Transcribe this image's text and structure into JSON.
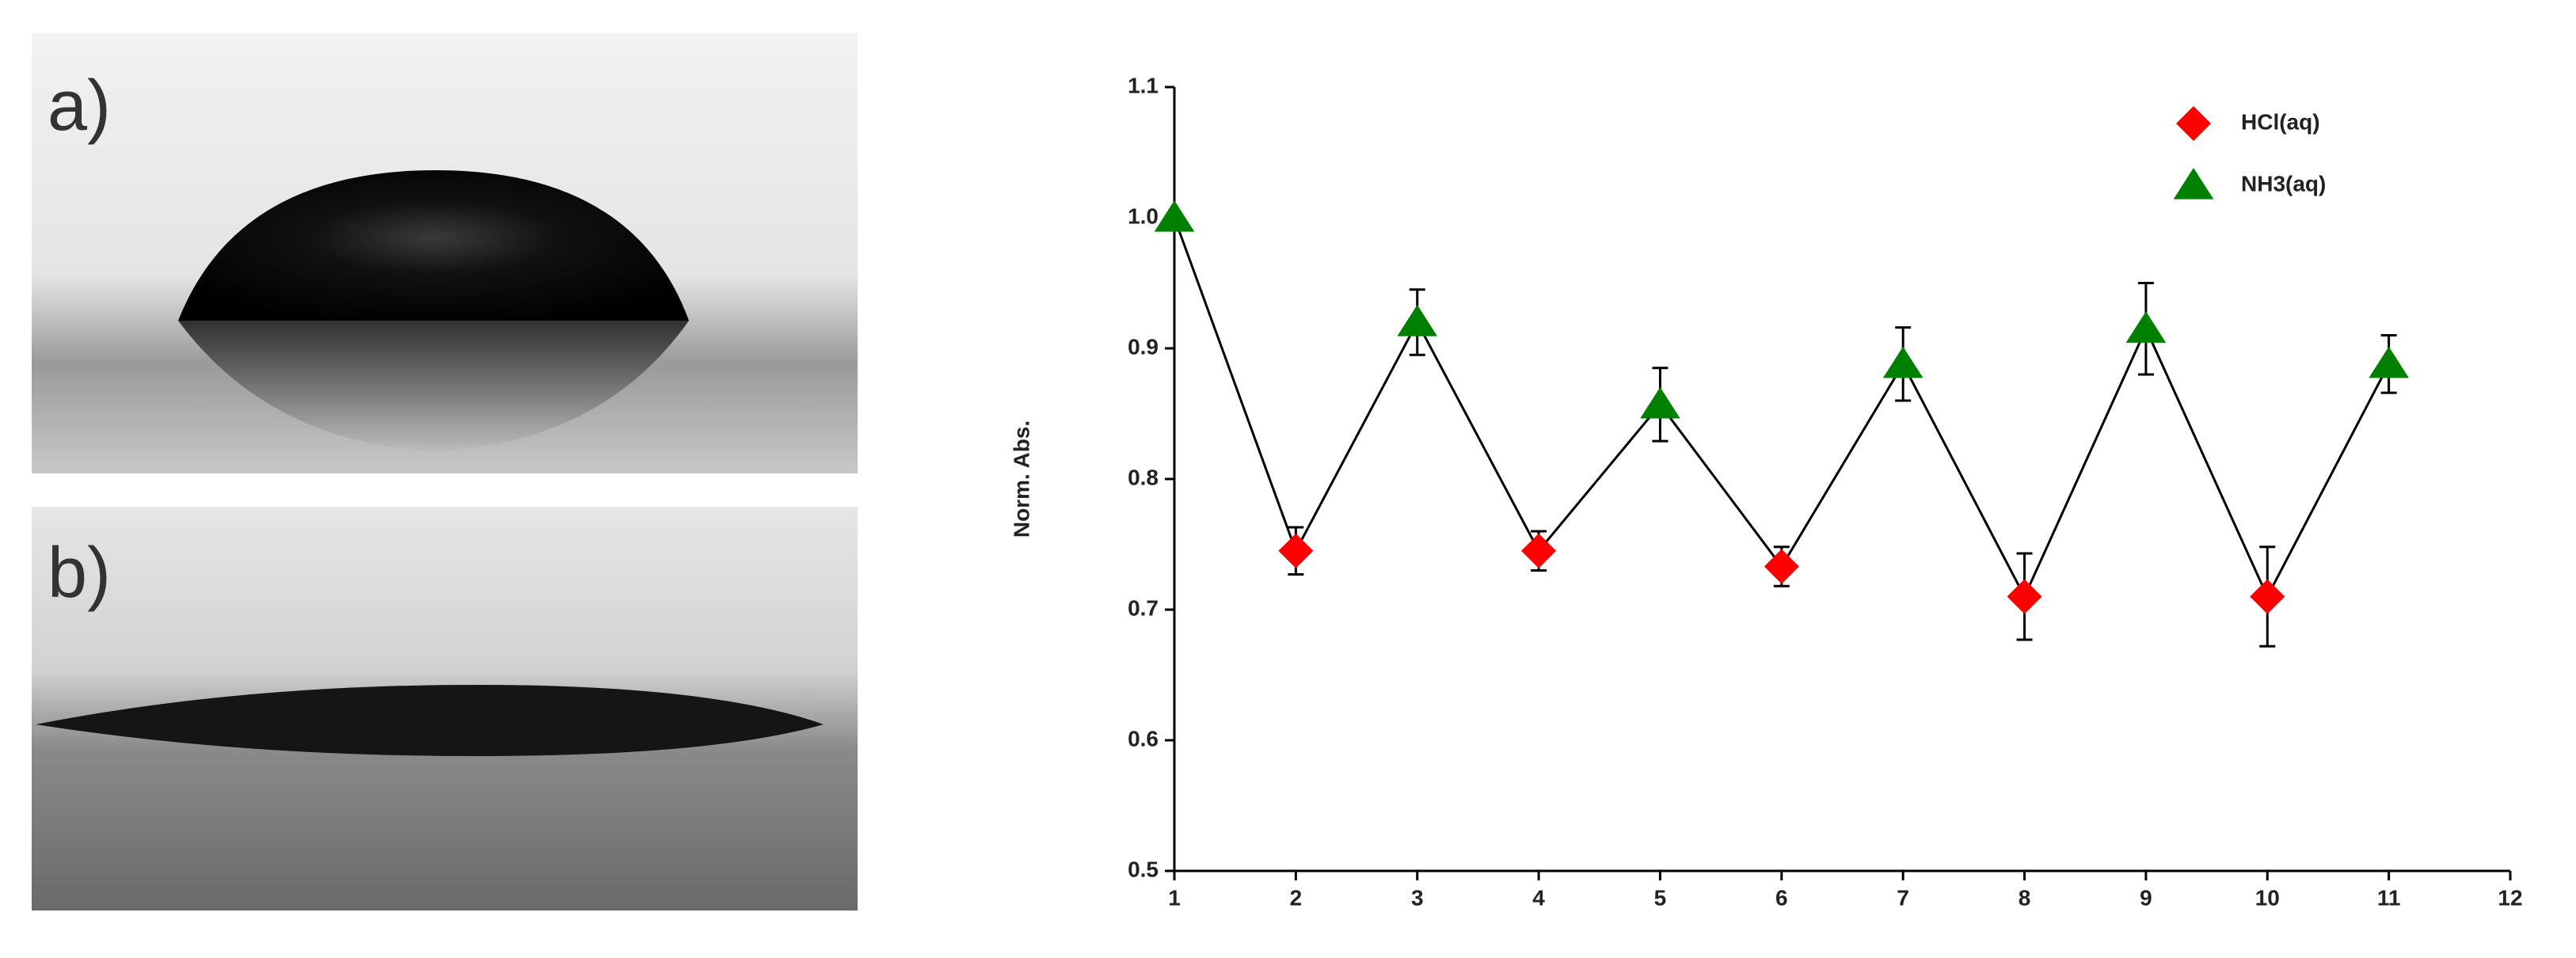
{
  "panels": [
    "a)",
    "b)"
  ],
  "chart_data": {
    "type": "scatter",
    "y_label": "Norm. Abs.",
    "xlim": [
      1,
      12
    ],
    "xticks": [
      1,
      2,
      3,
      4,
      5,
      6,
      7,
      8,
      9,
      10,
      11,
      12
    ],
    "ylim": [
      0.5,
      1.1
    ],
    "yticks": [
      0.5,
      0.6,
      0.7,
      0.8,
      0.9,
      {
        "value": 1,
        "label": "1.0"
      },
      1.1
    ],
    "connect": true,
    "legend": "top-right",
    "series": [
      {
        "name": "HCl(aq)",
        "color": "#ff0000",
        "marker": "diamond",
        "x": [
          2,
          4,
          6,
          8,
          10
        ],
        "values": [
          0.745,
          0.745,
          0.733,
          0.71,
          0.71
        ],
        "errors": [
          0.018,
          0.015,
          0.015,
          0.033,
          0.038
        ]
      },
      {
        "name": "NH3(aq)",
        "color": "#008000",
        "marker": "triangle",
        "x": [
          1,
          3,
          5,
          7,
          9,
          11
        ],
        "values": [
          1,
          0.92,
          0.857,
          0.888,
          0.915,
          0.888
        ],
        "errors": [
          0,
          0.025,
          0.028,
          0.028,
          0.035,
          0.022
        ]
      }
    ]
  }
}
